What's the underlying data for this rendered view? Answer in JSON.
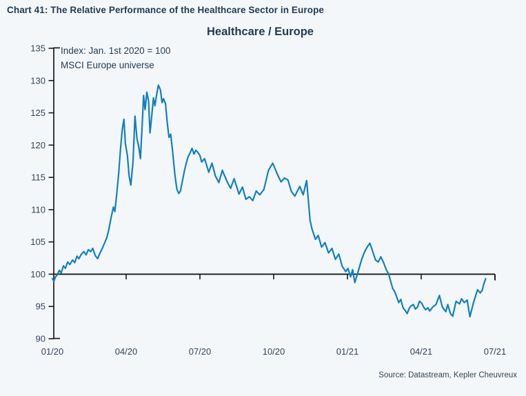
{
  "header": {
    "title": "Chart 41: The Relative Performance of the Healthcare Sector in Europe"
  },
  "chart": {
    "title": "Healthcare / Europe",
    "annotation_line1": "Index: Jan. 1st 2020 = 100",
    "annotation_line2": "MSCI Europe universe",
    "source": "Source: Datastream, Kepler Cheuvreux"
  },
  "colors": {
    "background": "#f4f7fa",
    "line": "#117fc0",
    "axis": "#14191f",
    "title_text": "#1f3a52",
    "tick_text": "#32455a"
  },
  "chart_data": {
    "type": "line",
    "title": "Healthcare / Europe",
    "xlabel": "Date (MM/YY), Jan 2020 - Jul 2021",
    "ylabel": "Relative performance index (Jan. 1st 2020 = 100)",
    "ylim": [
      90,
      135
    ],
    "y_ticks": [
      90,
      95,
      100,
      105,
      110,
      115,
      120,
      125,
      130,
      135
    ],
    "xlim_months": [
      0,
      18
    ],
    "x_ticks": [
      {
        "t": 0,
        "label": "01/20"
      },
      {
        "t": 3,
        "label": "04/20"
      },
      {
        "t": 6,
        "label": "07/20"
      },
      {
        "t": 9,
        "label": "10/20"
      },
      {
        "t": 12,
        "label": "01/21"
      },
      {
        "t": 15,
        "label": "04/21"
      },
      {
        "t": 18,
        "label": "07/21"
      }
    ],
    "baseline": 100,
    "grid": false,
    "legend": "none",
    "series": [
      {
        "name": "Healthcare / Europe relative index (MSCI Europe universe)",
        "x_unit": "months since 2020-01-01",
        "points": [
          [
            0.0,
            99.3
          ],
          [
            0.06,
            98.9
          ],
          [
            0.13,
            99.6
          ],
          [
            0.2,
            99.9
          ],
          [
            0.28,
            100.6
          ],
          [
            0.36,
            100.2
          ],
          [
            0.45,
            101.3
          ],
          [
            0.53,
            100.9
          ],
          [
            0.62,
            101.9
          ],
          [
            0.71,
            101.5
          ],
          [
            0.82,
            102.2
          ],
          [
            0.91,
            101.8
          ],
          [
            1.0,
            102.8
          ],
          [
            1.08,
            102.4
          ],
          [
            1.18,
            103.1
          ],
          [
            1.28,
            103.5
          ],
          [
            1.37,
            103.0
          ],
          [
            1.46,
            103.8
          ],
          [
            1.56,
            103.5
          ],
          [
            1.64,
            104.0
          ],
          [
            1.74,
            102.9
          ],
          [
            1.84,
            102.4
          ],
          [
            1.94,
            103.3
          ],
          [
            2.03,
            104.0
          ],
          [
            2.12,
            104.8
          ],
          [
            2.21,
            105.6
          ],
          [
            2.3,
            107.0
          ],
          [
            2.39,
            108.8
          ],
          [
            2.48,
            110.4
          ],
          [
            2.54,
            109.7
          ],
          [
            2.62,
            112.5
          ],
          [
            2.7,
            115.8
          ],
          [
            2.77,
            119.4
          ],
          [
            2.84,
            122.4
          ],
          [
            2.91,
            124.0
          ],
          [
            2.97,
            120.2
          ],
          [
            3.05,
            118.4
          ],
          [
            3.12,
            115.2
          ],
          [
            3.19,
            113.8
          ],
          [
            3.28,
            117.5
          ],
          [
            3.36,
            124.5
          ],
          [
            3.44,
            121.0
          ],
          [
            3.51,
            119.8
          ],
          [
            3.58,
            117.9
          ],
          [
            3.65,
            123.0
          ],
          [
            3.71,
            127.7
          ],
          [
            3.77,
            125.5
          ],
          [
            3.84,
            128.2
          ],
          [
            3.91,
            126.8
          ],
          [
            3.97,
            121.9
          ],
          [
            4.04,
            124.5
          ],
          [
            4.11,
            127.3
          ],
          [
            4.17,
            126.1
          ],
          [
            4.24,
            127.8
          ],
          [
            4.31,
            129.3
          ],
          [
            4.39,
            128.6
          ],
          [
            4.46,
            126.6
          ],
          [
            4.52,
            127.2
          ],
          [
            4.6,
            126.4
          ],
          [
            4.67,
            123.5
          ],
          [
            4.74,
            121.2
          ],
          [
            4.81,
            121.7
          ],
          [
            4.89,
            119.0
          ],
          [
            4.98,
            115.5
          ],
          [
            5.06,
            113.2
          ],
          [
            5.14,
            112.5
          ],
          [
            5.21,
            112.9
          ],
          [
            5.29,
            114.5
          ],
          [
            5.37,
            116.0
          ],
          [
            5.45,
            117.3
          ],
          [
            5.52,
            118.2
          ],
          [
            5.6,
            118.8
          ],
          [
            5.68,
            119.5
          ],
          [
            5.76,
            118.6
          ],
          [
            5.83,
            119.2
          ],
          [
            5.91,
            118.9
          ],
          [
            6.0,
            118.4
          ],
          [
            6.07,
            117.4
          ],
          [
            6.19,
            117.9
          ],
          [
            6.36,
            115.8
          ],
          [
            6.49,
            117.2
          ],
          [
            6.63,
            115.2
          ],
          [
            6.77,
            114.2
          ],
          [
            6.91,
            116.1
          ],
          [
            7.11,
            114.3
          ],
          [
            7.25,
            113.3
          ],
          [
            7.39,
            114.8
          ],
          [
            7.59,
            112.4
          ],
          [
            7.73,
            113.5
          ],
          [
            7.87,
            111.6
          ],
          [
            8.01,
            112.0
          ],
          [
            8.15,
            111.4
          ],
          [
            8.29,
            112.9
          ],
          [
            8.43,
            112.3
          ],
          [
            8.6,
            113.1
          ],
          [
            8.79,
            116.1
          ],
          [
            8.96,
            117.2
          ],
          [
            9.16,
            115.4
          ],
          [
            9.3,
            114.3
          ],
          [
            9.44,
            114.9
          ],
          [
            9.58,
            114.6
          ],
          [
            9.72,
            112.8
          ],
          [
            9.86,
            112.1
          ],
          [
            10.06,
            113.6
          ],
          [
            10.2,
            112.3
          ],
          [
            10.34,
            114.5
          ],
          [
            10.48,
            108.3
          ],
          [
            10.56,
            107.0
          ],
          [
            10.7,
            105.4
          ],
          [
            10.81,
            106.0
          ],
          [
            10.95,
            104.2
          ],
          [
            11.09,
            104.9
          ],
          [
            11.23,
            103.3
          ],
          [
            11.37,
            104.0
          ],
          [
            11.51,
            102.3
          ],
          [
            11.65,
            103.1
          ],
          [
            11.79,
            101.2
          ],
          [
            11.93,
            100.4
          ],
          [
            12.02,
            100.9
          ],
          [
            12.13,
            99.6
          ],
          [
            12.21,
            100.7
          ],
          [
            12.3,
            98.7
          ],
          [
            12.44,
            100.5
          ],
          [
            12.58,
            102.3
          ],
          [
            12.69,
            103.4
          ],
          [
            12.8,
            104.2
          ],
          [
            12.91,
            104.8
          ],
          [
            13.03,
            103.5
          ],
          [
            13.14,
            102.2
          ],
          [
            13.25,
            101.9
          ],
          [
            13.36,
            102.7
          ],
          [
            13.47,
            101.8
          ],
          [
            13.59,
            100.6
          ],
          [
            13.67,
            100.1
          ],
          [
            13.75,
            99.0
          ],
          [
            13.84,
            97.8
          ],
          [
            13.92,
            97.3
          ],
          [
            14.01,
            96.4
          ],
          [
            14.09,
            95.6
          ],
          [
            14.17,
            96.1
          ],
          [
            14.26,
            94.8
          ],
          [
            14.34,
            94.4
          ],
          [
            14.43,
            93.9
          ],
          [
            14.51,
            94.7
          ],
          [
            14.59,
            95.1
          ],
          [
            14.68,
            95.3
          ],
          [
            14.76,
            94.6
          ],
          [
            14.85,
            94.9
          ],
          [
            14.93,
            95.8
          ],
          [
            15.02,
            95.5
          ],
          [
            15.1,
            94.9
          ],
          [
            15.18,
            94.5
          ],
          [
            15.27,
            94.8
          ],
          [
            15.35,
            94.3
          ],
          [
            15.46,
            94.9
          ],
          [
            15.6,
            95.3
          ],
          [
            15.74,
            96.7
          ],
          [
            15.86,
            94.9
          ],
          [
            16.0,
            94.2
          ],
          [
            16.08,
            95.3
          ],
          [
            16.19,
            93.9
          ],
          [
            16.28,
            93.5
          ],
          [
            16.42,
            95.8
          ],
          [
            16.56,
            95.4
          ],
          [
            16.64,
            96.2
          ],
          [
            16.75,
            95.6
          ],
          [
            16.87,
            96.0
          ],
          [
            16.98,
            93.4
          ],
          [
            17.12,
            95.5
          ],
          [
            17.2,
            96.5
          ],
          [
            17.29,
            97.6
          ],
          [
            17.4,
            97.1
          ],
          [
            17.48,
            97.5
          ],
          [
            17.54,
            98.4
          ],
          [
            17.62,
            99.3
          ]
        ]
      }
    ]
  }
}
